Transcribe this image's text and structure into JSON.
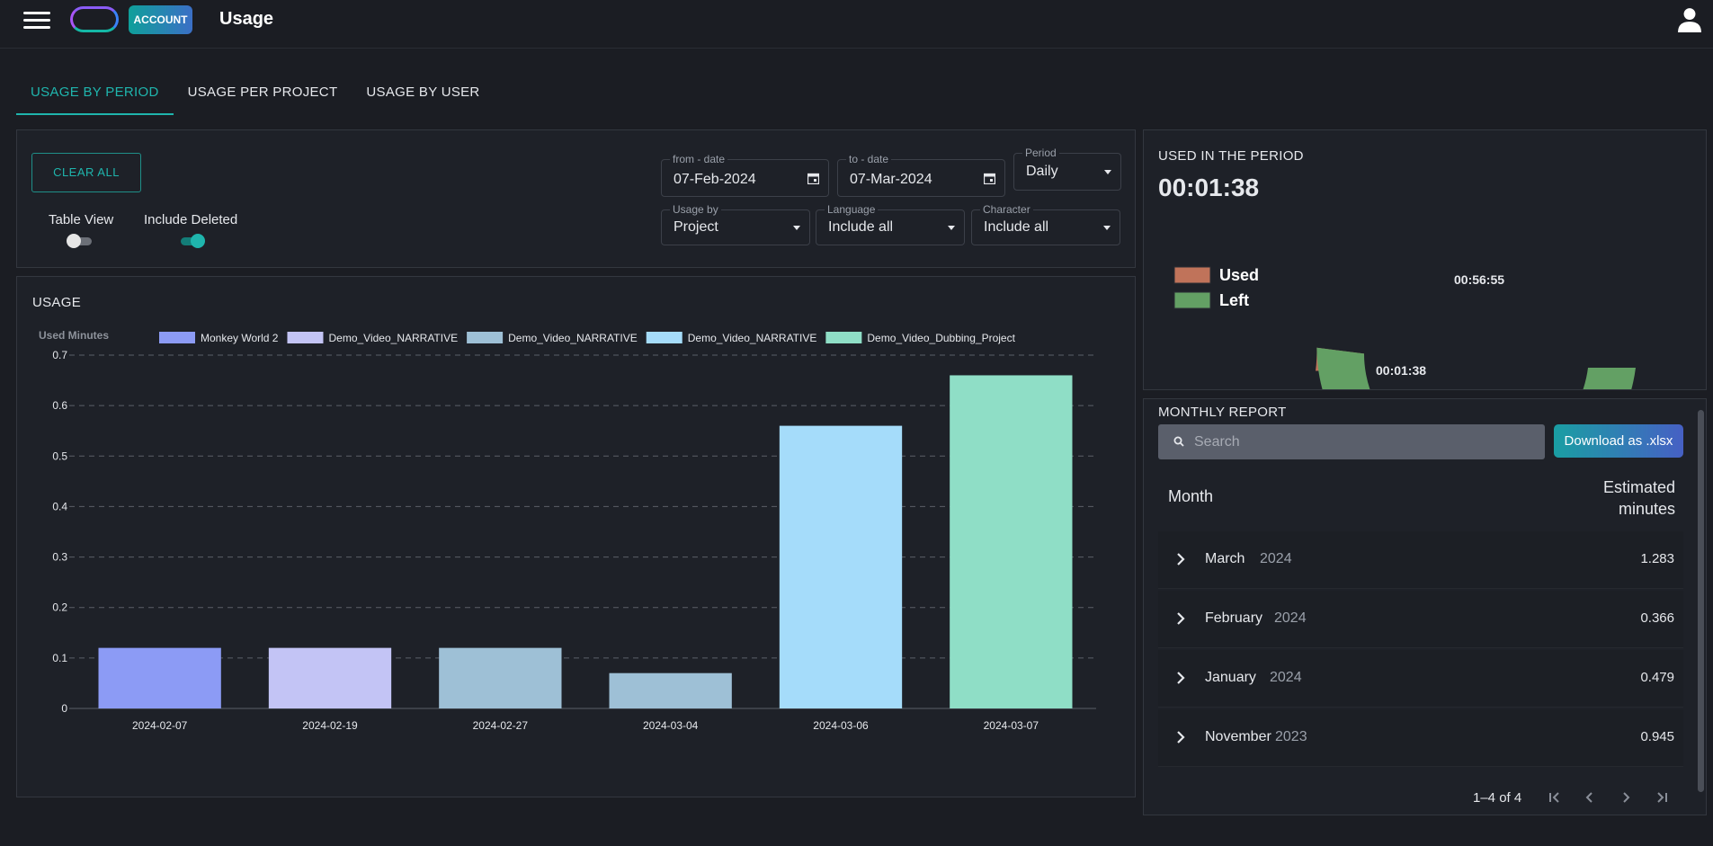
{
  "header": {
    "account_badge": "ACCOUNT",
    "title": "Usage"
  },
  "tabs": [
    {
      "label": "USAGE BY PERIOD",
      "active": true
    },
    {
      "label": "USAGE PER PROJECT",
      "active": false
    },
    {
      "label": "USAGE BY USER",
      "active": false
    }
  ],
  "filters": {
    "clear_all": "CLEAR ALL",
    "table_view": {
      "label": "Table View",
      "on": false
    },
    "include_deleted": {
      "label": "Include Deleted",
      "on": true
    },
    "from_date": {
      "label": "from - date",
      "value": "07-Feb-2024"
    },
    "to_date": {
      "label": "to - date",
      "value": "07-Mar-2024"
    },
    "period": {
      "label": "Period",
      "value": "Daily"
    },
    "usage_by": {
      "label": "Usage by",
      "value": "Project"
    },
    "language": {
      "label": "Language",
      "value": "Include all"
    },
    "character": {
      "label": "Character",
      "value": "Include all"
    }
  },
  "usage_panel": {
    "title": "USAGE"
  },
  "chart_data": [
    {
      "type": "bar",
      "ylabel": "Used Minutes",
      "ylim": [
        0,
        0.7
      ],
      "yticks": [
        0,
        0.1,
        0.2,
        0.3,
        0.4,
        0.5,
        0.6,
        0.7
      ],
      "grid": true,
      "legend_position": "top",
      "categories": [
        "2024-02-07",
        "2024-02-19",
        "2024-02-27",
        "2024-03-04",
        "2024-03-06",
        "2024-03-07"
      ],
      "series": [
        {
          "name": "Monkey World 2",
          "color": "#8c9bf5",
          "values": [
            0.12,
            0,
            0,
            0,
            0,
            0
          ]
        },
        {
          "name": "Demo_Video_NARRATIVE",
          "color": "#c3c4f5",
          "values": [
            0,
            0.12,
            0,
            0,
            0,
            0
          ]
        },
        {
          "name": "Demo_Video_NARRATIVE",
          "color": "#9ec0d6",
          "values": [
            0,
            0,
            0.12,
            0.07,
            0,
            0
          ]
        },
        {
          "name": "Demo_Video_NARRATIVE",
          "color": "#a5dcfa",
          "values": [
            0,
            0,
            0,
            0,
            0.56,
            0
          ]
        },
        {
          "name": "Demo_Video_Dubbing_Project",
          "color": "#8fdec6",
          "values": [
            0,
            0,
            0,
            0,
            0,
            0.66
          ]
        }
      ]
    },
    {
      "type": "pie",
      "style": "half-donut gauge",
      "labels": [
        "Used",
        "Left"
      ],
      "values_text": [
        "00:01:38",
        "00:56:55"
      ],
      "values_seconds": [
        98,
        3415
      ],
      "colors": [
        "#c0735a",
        "#63a064"
      ],
      "legend_position": "left"
    }
  ],
  "period_panel": {
    "title": "USED IN THE PERIOD",
    "used_total": "00:01:38"
  },
  "monthly_report": {
    "title": "MONTHLY REPORT",
    "search_placeholder": "Search",
    "download_label": "Download as .xlsx",
    "col_month": "Month",
    "col_estimated_1": "Estimated",
    "col_estimated_2": "minutes",
    "rows": [
      {
        "month": "March",
        "year": "2024",
        "value": "1.283"
      },
      {
        "month": "February",
        "year": "2024",
        "value": "0.366"
      },
      {
        "month": "January",
        "year": "2024",
        "value": "0.479"
      },
      {
        "month": "November",
        "year": "2023",
        "value": "0.945"
      }
    ],
    "pagination": "1–4 of 4"
  },
  "icons": {
    "menu": "hamburger-menu-icon",
    "user": "user-icon",
    "calendar": "calendar-icon",
    "search": "search-icon",
    "expand": "chevron-right-icon",
    "first_page": "first-page-icon",
    "prev_page": "chevron-left-icon",
    "next_page": "chevron-right-icon",
    "last_page": "last-page-icon"
  }
}
